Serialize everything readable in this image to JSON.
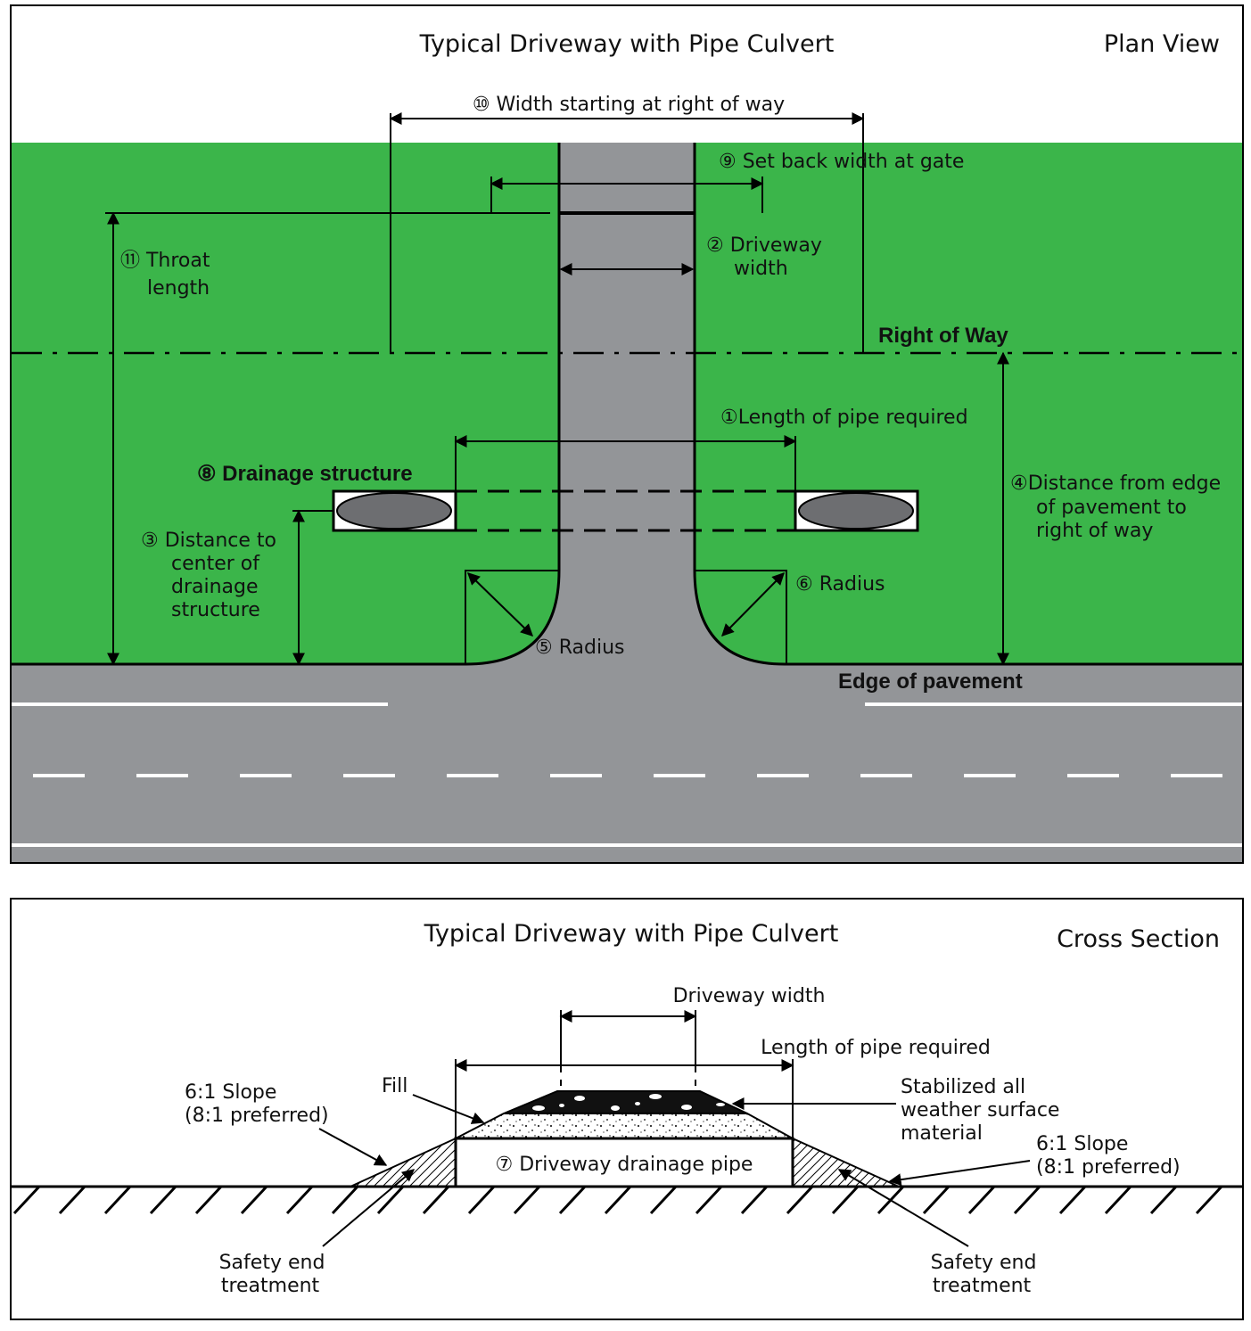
{
  "colors": {
    "grass": "#3bb54a",
    "pavement": "#939598",
    "ellipse": "#6d6e71",
    "lane_marking": "#ffffff",
    "outline": "#000000"
  },
  "plan_view": {
    "title": "Typical Driveway with Pipe Culvert",
    "view_label": "Plan View",
    "width_at_row": "⑩ Width starting at right of way",
    "setback_width": "⑨ Set back width at gate",
    "driveway_width_line1": "② Driveway",
    "driveway_width_line2": "width",
    "throat_length_line1": "⑪ Throat",
    "throat_length_line2": "length",
    "right_of_way": "Right of Way",
    "pipe_length": "①Length of pipe required",
    "drainage_structure": "⑧ Drainage structure",
    "dist_edge_line1": "④Distance from edge",
    "dist_edge_line2": "of pavement to",
    "dist_edge_line3": "right of way",
    "dist_center_line1": "③ Distance to",
    "dist_center_line2": "center of",
    "dist_center_line3": "drainage",
    "dist_center_line4": "structure",
    "radius_left": "⑤ Radius",
    "radius_right": "⑥ Radius",
    "edge_of_pavement": "Edge of pavement"
  },
  "cross_section": {
    "title": "Typical Driveway with Pipe Culvert",
    "view_label": "Cross Section",
    "driveway_width": "Driveway width",
    "pipe_length": "Length of pipe required",
    "fill": "Fill",
    "surface_line1": "Stabilized all",
    "surface_line2": "weather surface",
    "surface_line3": "material",
    "slope_left_line1": "6:1 Slope",
    "slope_left_line2": "(8:1 preferred)",
    "slope_right_line1": "6:1 Slope",
    "slope_right_line2": "(8:1 preferred)",
    "pipe_label": "⑦ Driveway drainage pipe",
    "safety_left_line1": "Safety end",
    "safety_left_line2": "treatment",
    "safety_right_line1": "Safety end",
    "safety_right_line2": "treatment"
  }
}
